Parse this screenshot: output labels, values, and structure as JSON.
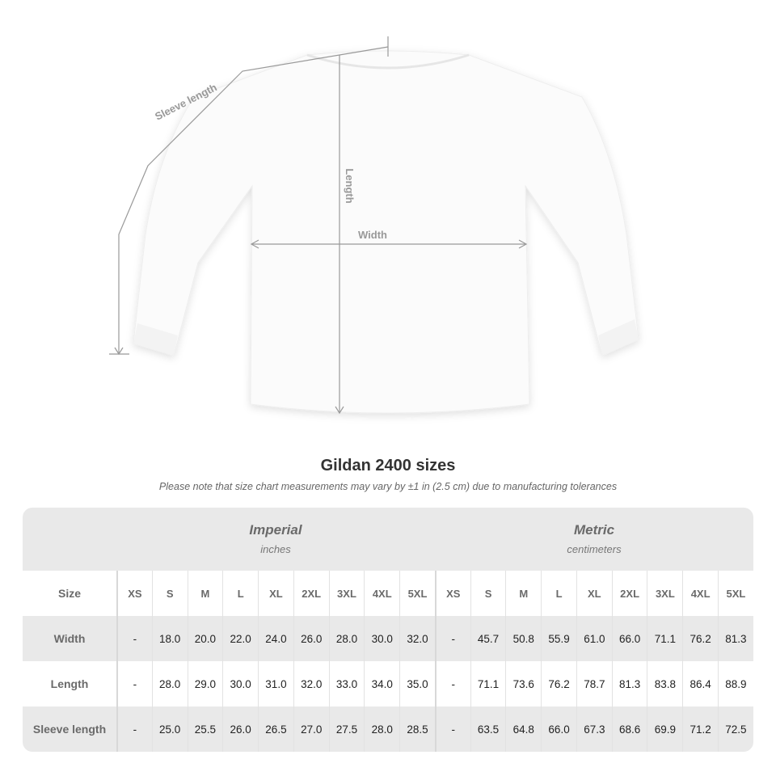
{
  "diagram": {
    "labels": {
      "sleeve": "Sleeve length",
      "length": "Length",
      "width": "Width"
    }
  },
  "title": "Gildan 2400 sizes",
  "note": "Please note that size chart measurements may vary by ±1 in (2.5 cm) due to manufacturing tolerances",
  "groups": {
    "imperial": {
      "name": "Imperial",
      "unit": "inches"
    },
    "metric": {
      "name": "Metric",
      "unit": "centimeters"
    }
  },
  "table": {
    "header_label": "Size",
    "sizes": [
      "XS",
      "S",
      "M",
      "L",
      "XL",
      "2XL",
      "3XL",
      "4XL",
      "5XL"
    ],
    "rows": [
      {
        "label": "Width",
        "imperial": [
          "-",
          "18.0",
          "20.0",
          "22.0",
          "24.0",
          "26.0",
          "28.0",
          "30.0",
          "32.0"
        ],
        "metric": [
          "-",
          "45.7",
          "50.8",
          "55.9",
          "61.0",
          "66.0",
          "71.1",
          "76.2",
          "81.3"
        ]
      },
      {
        "label": "Length",
        "imperial": [
          "-",
          "28.0",
          "29.0",
          "30.0",
          "31.0",
          "32.0",
          "33.0",
          "34.0",
          "35.0"
        ],
        "metric": [
          "-",
          "71.1",
          "73.6",
          "76.2",
          "78.7",
          "81.3",
          "83.8",
          "86.4",
          "88.9"
        ]
      },
      {
        "label": "Sleeve length",
        "imperial": [
          "-",
          "25.0",
          "25.5",
          "26.0",
          "26.5",
          "27.0",
          "27.5",
          "28.0",
          "28.5"
        ],
        "metric": [
          "-",
          "63.5",
          "64.8",
          "66.0",
          "67.3",
          "68.6",
          "69.9",
          "71.2",
          "72.5"
        ]
      }
    ]
  },
  "colors": {
    "band": "#e9e9e9",
    "label_text": "#6a6a6a",
    "measure_line": "#999999"
  }
}
